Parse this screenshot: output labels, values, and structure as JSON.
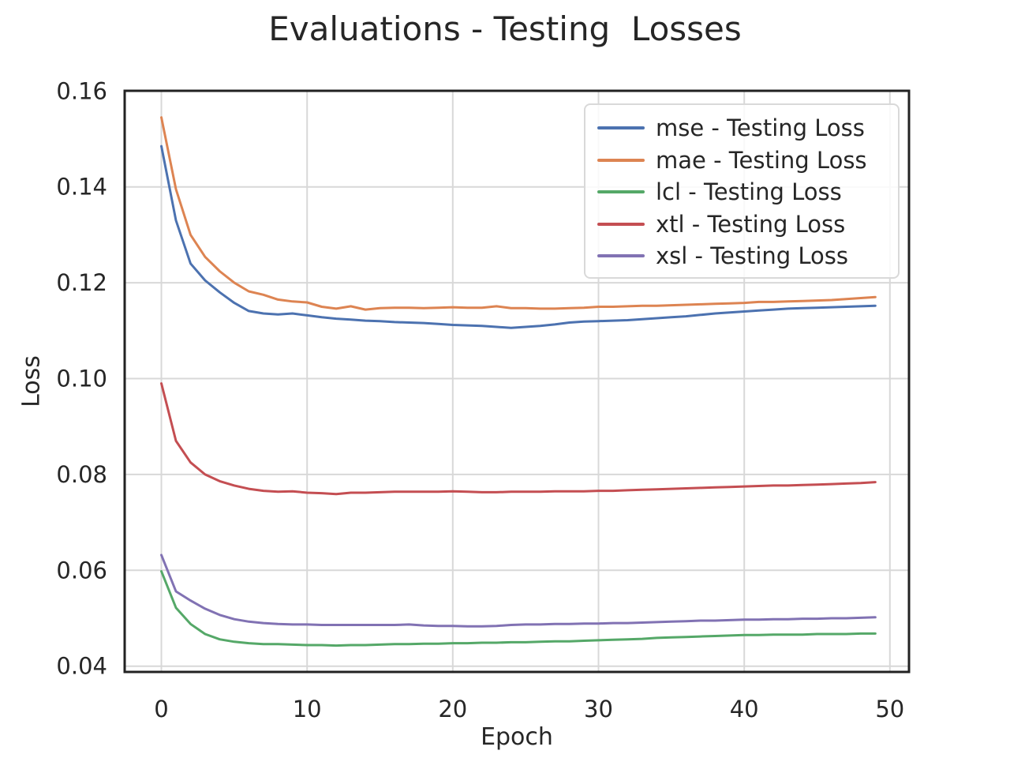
{
  "chart_data": {
    "type": "line",
    "title": "Evaluations - Testing  Losses",
    "xlabel": "Epoch",
    "ylabel": "Loss",
    "grid": true,
    "legend_position": "upper right",
    "xlim": [
      -2.52,
      51.31
    ],
    "ylim": [
      0.0388,
      0.16005
    ],
    "xticks": [
      0,
      10,
      20,
      30,
      40,
      50
    ],
    "yticks": [
      0.04,
      0.06,
      0.08,
      0.1,
      0.12,
      0.14,
      0.16
    ],
    "x": [
      0,
      1,
      2,
      3,
      4,
      5,
      6,
      7,
      8,
      9,
      10,
      11,
      12,
      13,
      14,
      15,
      16,
      17,
      18,
      19,
      20,
      21,
      22,
      23,
      24,
      25,
      26,
      27,
      28,
      29,
      30,
      31,
      32,
      33,
      34,
      35,
      36,
      37,
      38,
      39,
      40,
      41,
      42,
      43,
      44,
      45,
      46,
      47,
      48,
      49
    ],
    "series": [
      {
        "name": "mse - Testing Loss",
        "color": "#4C72B0",
        "values": [
          0.1485,
          0.133,
          0.124,
          0.1205,
          0.118,
          0.1158,
          0.1141,
          0.1136,
          0.1134,
          0.1136,
          0.1132,
          0.1128,
          0.1125,
          0.1123,
          0.1121,
          0.112,
          0.1118,
          0.1117,
          0.1116,
          0.1114,
          0.1112,
          0.1111,
          0.111,
          0.1108,
          0.1106,
          0.1108,
          0.111,
          0.1113,
          0.1117,
          0.1119,
          0.112,
          0.1121,
          0.1122,
          0.1124,
          0.1126,
          0.1128,
          0.113,
          0.1133,
          0.1136,
          0.1138,
          0.114,
          0.1142,
          0.1144,
          0.1146,
          0.1147,
          0.1148,
          0.1149,
          0.115,
          0.1151,
          0.1152
        ]
      },
      {
        "name": "mae - Testing Loss",
        "color": "#DD8452",
        "values": [
          0.1545,
          0.1395,
          0.13,
          0.1254,
          0.1224,
          0.12,
          0.1182,
          0.1175,
          0.1165,
          0.1161,
          0.1159,
          0.115,
          0.1146,
          0.1151,
          0.1144,
          0.1147,
          0.1148,
          0.1148,
          0.1147,
          0.1148,
          0.1149,
          0.1148,
          0.1148,
          0.1151,
          0.1147,
          0.1147,
          0.1146,
          0.1146,
          0.1147,
          0.1148,
          0.115,
          0.115,
          0.1151,
          0.1152,
          0.1152,
          0.1153,
          0.1154,
          0.1155,
          0.1156,
          0.1157,
          0.1158,
          0.116,
          0.116,
          0.1161,
          0.1162,
          0.1163,
          0.1164,
          0.1166,
          0.1168,
          0.117
        ]
      },
      {
        "name": "lcl - Testing Loss",
        "color": "#55A868",
        "values": [
          0.0598,
          0.0522,
          0.0488,
          0.0467,
          0.0456,
          0.0451,
          0.0448,
          0.0446,
          0.0446,
          0.0445,
          0.0444,
          0.0444,
          0.0443,
          0.0444,
          0.0444,
          0.0445,
          0.0446,
          0.0446,
          0.0447,
          0.0447,
          0.0448,
          0.0448,
          0.0449,
          0.0449,
          0.045,
          0.045,
          0.0451,
          0.0452,
          0.0452,
          0.0453,
          0.0454,
          0.0455,
          0.0456,
          0.0457,
          0.0459,
          0.046,
          0.0461,
          0.0462,
          0.0463,
          0.0464,
          0.0465,
          0.0465,
          0.0466,
          0.0466,
          0.0466,
          0.0467,
          0.0467,
          0.0467,
          0.0468,
          0.0468
        ]
      },
      {
        "name": "xtl - Testing Loss",
        "color": "#C44E52",
        "values": [
          0.099,
          0.087,
          0.0825,
          0.08,
          0.0786,
          0.0777,
          0.077,
          0.0766,
          0.0764,
          0.0765,
          0.0762,
          0.0761,
          0.0759,
          0.0762,
          0.0762,
          0.0763,
          0.0764,
          0.0764,
          0.0764,
          0.0764,
          0.0765,
          0.0764,
          0.0763,
          0.0763,
          0.0764,
          0.0764,
          0.0764,
          0.0765,
          0.0765,
          0.0765,
          0.0766,
          0.0766,
          0.0767,
          0.0768,
          0.0769,
          0.077,
          0.0771,
          0.0772,
          0.0773,
          0.0774,
          0.0775,
          0.0776,
          0.0777,
          0.0777,
          0.0778,
          0.0779,
          0.078,
          0.0781,
          0.0782,
          0.0784
        ]
      },
      {
        "name": "xsl - Testing Loss",
        "color": "#8172B3",
        "values": [
          0.0632,
          0.0556,
          0.0537,
          0.052,
          0.0507,
          0.0498,
          0.0493,
          0.049,
          0.0488,
          0.0487,
          0.0487,
          0.0486,
          0.0486,
          0.0486,
          0.0486,
          0.0486,
          0.0486,
          0.0487,
          0.0485,
          0.0484,
          0.0484,
          0.0483,
          0.0483,
          0.0484,
          0.0486,
          0.0487,
          0.0487,
          0.0488,
          0.0488,
          0.0489,
          0.0489,
          0.049,
          0.049,
          0.0491,
          0.0492,
          0.0493,
          0.0494,
          0.0495,
          0.0495,
          0.0496,
          0.0497,
          0.0497,
          0.0498,
          0.0498,
          0.0499,
          0.0499,
          0.05,
          0.05,
          0.0501,
          0.0502
        ]
      }
    ]
  }
}
